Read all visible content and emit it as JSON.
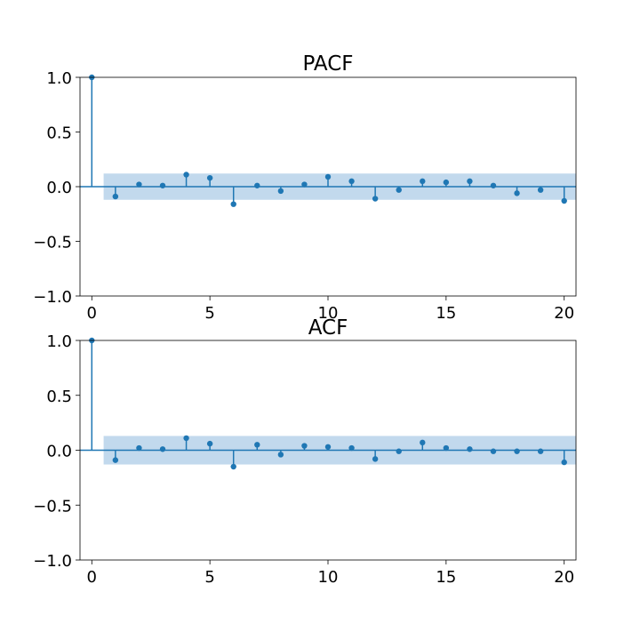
{
  "chart_data": [
    {
      "type": "stem",
      "title": "PACF",
      "xlim": [
        -0.5,
        20.5
      ],
      "ylim": [
        -1.0,
        1.0
      ],
      "xticks": [
        0,
        5,
        10,
        15,
        20
      ],
      "xtick_labels": [
        "0",
        "5",
        "10",
        "15",
        "20"
      ],
      "yticks": [
        -1.0,
        -0.5,
        0.0,
        0.5,
        1.0
      ],
      "ytick_labels": [
        "−1.0",
        "−0.5",
        "0.0",
        "0.5",
        "1.0"
      ],
      "confidence_band": [
        -0.12,
        0.12
      ],
      "confidence_band_x": [
        0.5,
        20.5
      ],
      "x": [
        0,
        1,
        2,
        3,
        4,
        5,
        6,
        7,
        8,
        9,
        10,
        11,
        12,
        13,
        14,
        15,
        16,
        17,
        18,
        19,
        20
      ],
      "values": [
        1.0,
        -0.09,
        0.02,
        0.01,
        0.11,
        0.08,
        -0.16,
        0.01,
        -0.04,
        0.02,
        0.09,
        0.05,
        -0.11,
        -0.03,
        0.05,
        0.04,
        0.05,
        0.01,
        -0.06,
        -0.03,
        -0.13
      ],
      "color": "#1f77b4",
      "band_color": "#a8c9e6"
    },
    {
      "type": "stem",
      "title": "ACF",
      "xlim": [
        -0.5,
        20.5
      ],
      "ylim": [
        -1.0,
        1.0
      ],
      "xticks": [
        0,
        5,
        10,
        15,
        20
      ],
      "xtick_labels": [
        "0",
        "5",
        "10",
        "15",
        "20"
      ],
      "yticks": [
        -1.0,
        -0.5,
        0.0,
        0.5,
        1.0
      ],
      "ytick_labels": [
        "−1.0",
        "−0.5",
        "0.0",
        "0.5",
        "1.0"
      ],
      "confidence_band": [
        -0.13,
        0.13
      ],
      "confidence_band_x": [
        0.5,
        20.5
      ],
      "x": [
        0,
        1,
        2,
        3,
        4,
        5,
        6,
        7,
        8,
        9,
        10,
        11,
        12,
        13,
        14,
        15,
        16,
        17,
        18,
        19,
        20
      ],
      "values": [
        1.0,
        -0.09,
        0.02,
        0.01,
        0.11,
        0.06,
        -0.15,
        0.05,
        -0.04,
        0.04,
        0.03,
        0.02,
        -0.08,
        -0.01,
        0.07,
        0.02,
        0.01,
        -0.01,
        -0.01,
        -0.01,
        -0.11
      ],
      "color": "#1f77b4",
      "band_color": "#a8c9e6"
    }
  ]
}
